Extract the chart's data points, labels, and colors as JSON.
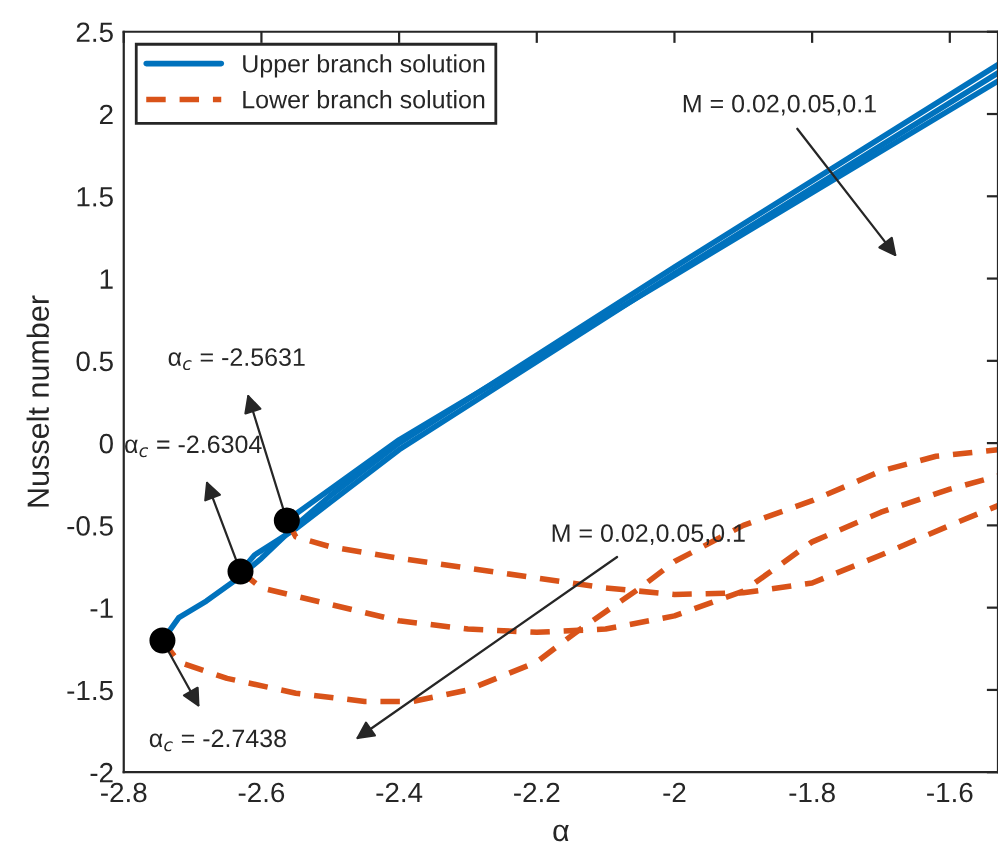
{
  "chart_data": {
    "type": "line",
    "xlabel": "α",
    "ylabel": "Nusselt number",
    "xlim": [
      -2.8,
      -1.53
    ],
    "ylim": [
      -2,
      2.5
    ],
    "xticks": [
      -2.8,
      -2.6,
      -2.4,
      -2.2,
      -2,
      -1.8,
      -1.6
    ],
    "yticks": [
      -2,
      -1.5,
      -1,
      -0.5,
      0,
      0.5,
      1,
      1.5,
      2,
      2.5
    ],
    "grid": false,
    "legend": "top left",
    "series": [
      {
        "name": "Upper branch solution",
        "color": "#0072bd",
        "line_style": "solid",
        "x": [
          -2.7438,
          -2.72,
          -2.68,
          -2.64,
          -2.6,
          -2.55,
          -2.5,
          -2.4,
          -2.0,
          -1.53
        ],
        "values": [
          -1.2,
          -1.06,
          -0.96,
          -0.84,
          -0.7,
          -0.5,
          -0.32,
          0.0,
          1.07,
          2.3
        ]
      },
      {
        "color": "#0072bd",
        "line_style": "solid",
        "x": [
          -2.6304,
          -2.61,
          -2.58,
          -2.55,
          -2.5,
          -2.4,
          -2.0,
          -1.53
        ],
        "values": [
          -0.78,
          -0.68,
          -0.6,
          -0.52,
          -0.36,
          -0.04,
          1.03,
          2.25
        ]
      },
      {
        "color": "#0072bd",
        "line_style": "solid",
        "x": [
          -2.5631,
          -2.54,
          -2.5,
          -2.4,
          -2.0,
          -1.53
        ],
        "values": [
          -0.47,
          -0.4,
          -0.28,
          0.02,
          1.02,
          2.2
        ]
      },
      {
        "name": "Lower branch solution",
        "color": "#d95319",
        "line_style": "dashed",
        "x": [
          -2.7438,
          -2.72,
          -2.65,
          -2.55,
          -2.45,
          -2.38,
          -2.3,
          -2.2,
          -2.14,
          -2.05,
          -2.0,
          -1.9,
          -1.8,
          -1.7,
          -1.62,
          -1.53
        ],
        "values": [
          -1.2,
          -1.33,
          -1.43,
          -1.52,
          -1.57,
          -1.57,
          -1.5,
          -1.33,
          -1.14,
          -0.88,
          -0.72,
          -0.5,
          -0.35,
          -0.17,
          -0.08,
          -0.04
        ]
      },
      {
        "color": "#d95319",
        "line_style": "dashed",
        "x": [
          -2.6304,
          -2.6,
          -2.5,
          -2.4,
          -2.3,
          -2.2,
          -2.1,
          -2.0,
          -1.9,
          -1.8,
          -1.7,
          -1.6,
          -1.53
        ],
        "values": [
          -0.78,
          -0.88,
          -0.98,
          -1.08,
          -1.13,
          -1.15,
          -1.13,
          -1.05,
          -0.9,
          -0.6,
          -0.42,
          -0.28,
          -0.2
        ]
      },
      {
        "color": "#d95319",
        "line_style": "dashed",
        "x": [
          -2.5631,
          -2.55,
          -2.5,
          -2.4,
          -2.3,
          -2.2,
          -2.1,
          -2.0,
          -1.9,
          -1.8,
          -1.7,
          -1.6,
          -1.53
        ],
        "values": [
          -0.47,
          -0.57,
          -0.63,
          -0.7,
          -0.76,
          -0.82,
          -0.88,
          -0.92,
          -0.91,
          -0.85,
          -0.68,
          -0.5,
          -0.38
        ]
      },
      {
        "type": "scatter",
        "color": "#000000",
        "marker": "circle",
        "x": [
          -2.7438,
          -2.6304,
          -2.5631
        ],
        "values": [
          -1.2,
          -0.78,
          -0.47
        ]
      }
    ],
    "annotations": [
      {
        "text": "α$_{c}$ = -2.5631",
        "x": -2.5631,
        "y": -0.47
      },
      {
        "text": "α$_{c}$ = -2.6304",
        "x": -2.6304,
        "y": -0.78
      },
      {
        "text": "α$_{c}$ = -2.7438",
        "x": -2.7438,
        "y": -1.2
      },
      "M = 0.02,0.05,0.1",
      "M = 0.02,0.05,0.1"
    ]
  }
}
